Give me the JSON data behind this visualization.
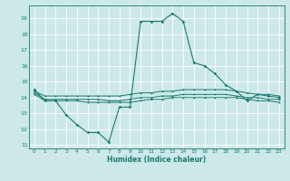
{
  "title": "",
  "xlabel": "Humidex (Indice chaleur)",
  "background_color": "#cce8e8",
  "grid_color": "#ffffff",
  "line_color": "#1a7a6e",
  "xlim": [
    -0.5,
    23.5
  ],
  "ylim": [
    10.8,
    19.8
  ],
  "yticks": [
    11,
    12,
    13,
    14,
    15,
    16,
    17,
    18,
    19
  ],
  "xticks": [
    0,
    1,
    2,
    3,
    4,
    5,
    6,
    7,
    8,
    9,
    10,
    11,
    12,
    13,
    14,
    15,
    16,
    17,
    18,
    19,
    20,
    21,
    22,
    23
  ],
  "series": {
    "line1": {
      "x": [
        0,
        1,
        2,
        3,
        4,
        5,
        6,
        7,
        8,
        9,
        10,
        11,
        12,
        13,
        14,
        15,
        16,
        17,
        18,
        19,
        20,
        21,
        22,
        23
      ],
      "y": [
        14.5,
        13.8,
        13.8,
        12.9,
        12.3,
        11.8,
        11.8,
        11.2,
        13.4,
        13.4,
        18.8,
        18.8,
        18.8,
        19.3,
        18.8,
        16.2,
        16.0,
        15.5,
        14.8,
        14.4,
        13.8,
        14.2,
        14.1,
        14.0
      ]
    },
    "line2": {
      "x": [
        0,
        1,
        2,
        3,
        4,
        5,
        6,
        7,
        8,
        9,
        10,
        11,
        12,
        13,
        14,
        15,
        16,
        17,
        18,
        19,
        20,
        21,
        22,
        23
      ],
      "y": [
        14.4,
        14.1,
        14.1,
        14.1,
        14.1,
        14.1,
        14.1,
        14.1,
        14.1,
        14.2,
        14.3,
        14.3,
        14.4,
        14.4,
        14.5,
        14.5,
        14.5,
        14.5,
        14.5,
        14.4,
        14.3,
        14.2,
        14.2,
        14.1
      ]
    },
    "line3": {
      "x": [
        0,
        1,
        2,
        3,
        4,
        5,
        6,
        7,
        8,
        9,
        10,
        11,
        12,
        13,
        14,
        15,
        16,
        17,
        18,
        19,
        20,
        21,
        22,
        23
      ],
      "y": [
        14.3,
        13.9,
        13.9,
        13.9,
        13.9,
        13.9,
        13.9,
        13.8,
        13.8,
        13.9,
        14.0,
        14.0,
        14.1,
        14.1,
        14.2,
        14.2,
        14.2,
        14.2,
        14.2,
        14.1,
        14.0,
        14.0,
        13.9,
        13.9
      ]
    },
    "line4": {
      "x": [
        0,
        1,
        2,
        3,
        4,
        5,
        6,
        7,
        8,
        9,
        10,
        11,
        12,
        13,
        14,
        15,
        16,
        17,
        18,
        19,
        20,
        21,
        22,
        23
      ],
      "y": [
        14.2,
        13.8,
        13.8,
        13.8,
        13.8,
        13.7,
        13.7,
        13.7,
        13.7,
        13.7,
        13.8,
        13.9,
        13.9,
        14.0,
        14.0,
        14.0,
        14.0,
        14.0,
        14.0,
        14.0,
        13.9,
        13.8,
        13.8,
        13.7
      ]
    }
  }
}
